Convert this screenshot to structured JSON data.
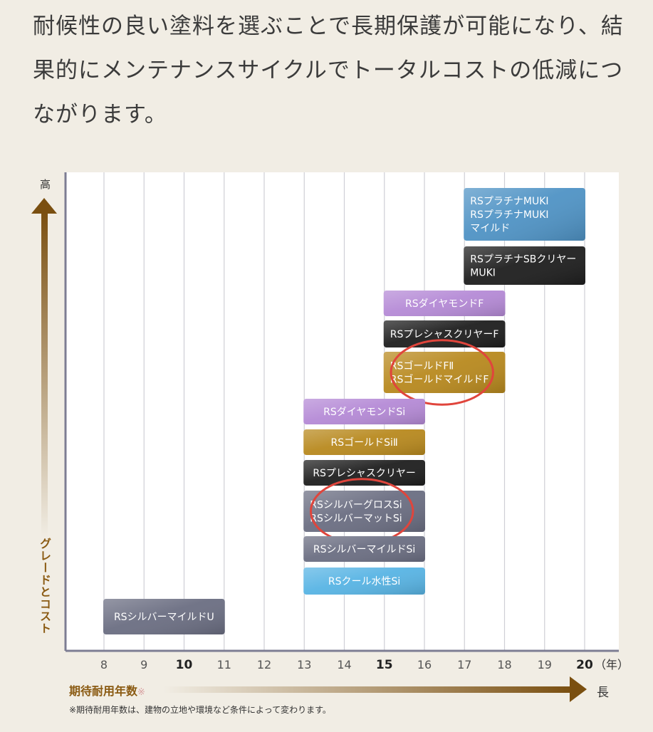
{
  "intro_text": "耐候性の良い塗料を選ぶことで長期保護が可能になり、結果的にメンテナンスサイクルでトータルコストの低減につながります。",
  "y_axis": {
    "top_label": "高",
    "label": "グレードとコスト"
  },
  "x_axis": {
    "title": "期待耐用年数",
    "title_mark": "※",
    "end_label": "長",
    "unit": "（年）"
  },
  "footnote": "※期待耐用年数は、建物の立地や環境など条件によって変わります。",
  "colors": {
    "platinum": "#4f93c5",
    "black": "#1e1e1e",
    "diamond": "#b58ad6",
    "gold": "#b8891e",
    "silver": "#6b6e82",
    "cool": "#58b4e4",
    "highlight_circle": "#e0453c",
    "axis_gold": "#8a5a12"
  },
  "chart_data": {
    "type": "bar",
    "orientation": "horizontal-range",
    "x_ticks": [
      8,
      9,
      10,
      11,
      12,
      13,
      14,
      15,
      16,
      17,
      18,
      19,
      20
    ],
    "x_bold_ticks": [
      10,
      15,
      20
    ],
    "xlim": [
      7.2,
      20.9
    ],
    "x_unit": "（年）",
    "grid": true,
    "bars": [
      {
        "lines": [
          "RSプラチナMUKI",
          "RSプラチナMUKI",
          "マイルド"
        ],
        "start": 17,
        "end": 20,
        "color_key": "platinum",
        "highlighted": false
      },
      {
        "lines": [
          "RSプラチナSBクリヤー",
          "MUKI"
        ],
        "start": 17,
        "end": 20,
        "color_key": "black",
        "highlighted": false
      },
      {
        "lines": [
          "RSダイヤモンドF"
        ],
        "start": 15,
        "end": 18,
        "color_key": "diamond",
        "highlighted": false
      },
      {
        "lines": [
          "RSプレシャスクリヤーF"
        ],
        "start": 15,
        "end": 18,
        "color_key": "black",
        "highlighted": false
      },
      {
        "lines": [
          "RSゴールドFⅡ",
          "RSゴールドマイルドF"
        ],
        "start": 15,
        "end": 18,
        "color_key": "gold",
        "highlighted": true
      },
      {
        "lines": [
          "RSダイヤモンドSi"
        ],
        "start": 13,
        "end": 16,
        "color_key": "diamond",
        "highlighted": false
      },
      {
        "lines": [
          "RSゴールドSiⅡ"
        ],
        "start": 13,
        "end": 16,
        "color_key": "gold",
        "highlighted": false
      },
      {
        "lines": [
          "RSプレシャスクリヤー"
        ],
        "start": 13,
        "end": 16,
        "color_key": "black",
        "highlighted": false
      },
      {
        "lines": [
          "RSシルバーグロスSi",
          "RSシルバーマットSi"
        ],
        "start": 13,
        "end": 16,
        "color_key": "silver",
        "highlighted": true
      },
      {
        "lines": [
          "RSシルバーマイルドSi"
        ],
        "start": 13,
        "end": 16,
        "color_key": "silver",
        "highlighted": false
      },
      {
        "lines": [
          "RSクール水性Si"
        ],
        "start": 13,
        "end": 16,
        "color_key": "cool",
        "highlighted": false
      },
      {
        "lines": [
          "RSシルバーマイルドU"
        ],
        "start": 8,
        "end": 11,
        "color_key": "silver",
        "highlighted": false
      }
    ]
  }
}
